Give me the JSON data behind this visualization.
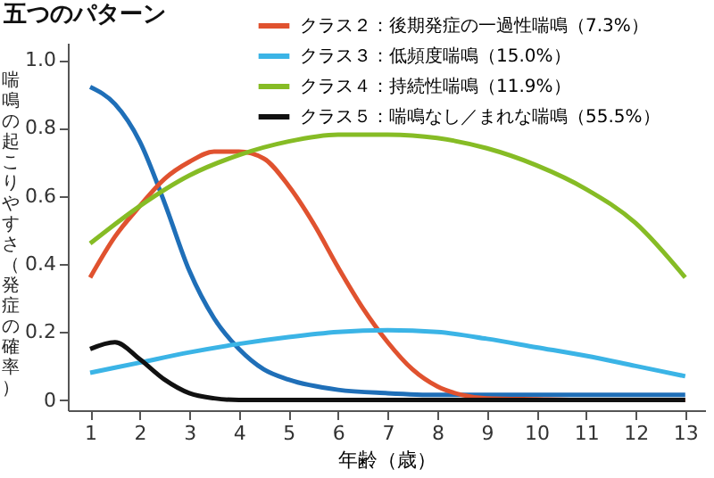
{
  "chart_data": {
    "type": "line",
    "title": "五つのパターン",
    "xlabel": "年齢（歳）",
    "ylabel": "喘鳴の起こりやすさ（発症の確率）",
    "xlim": [
      0.55,
      13.4
    ],
    "xticks": [
      1,
      2,
      3,
      4,
      5,
      6,
      7,
      8,
      9,
      10,
      11,
      12,
      13
    ],
    "ylim": [
      -0.03,
      1.05
    ],
    "yticks": [
      {
        "value": 0,
        "label": "0"
      },
      0.2,
      0.4,
      0.6,
      0.8,
      {
        "value": 1.0,
        "label": "1.0"
      }
    ],
    "grid": false,
    "legend": "top right",
    "marker": "none",
    "line_style": "solid",
    "series": [
      {
        "color": "#1f6fb8",
        "x": [
          1,
          1.5,
          2,
          2.5,
          3,
          3.5,
          4,
          4.5,
          5,
          6,
          7,
          8,
          9,
          10,
          11,
          12,
          13
        ],
        "values": [
          0.92,
          0.87,
          0.76,
          0.58,
          0.38,
          0.24,
          0.15,
          0.09,
          0.06,
          0.03,
          0.02,
          0.015,
          0.015,
          0.015,
          0.015,
          0.015,
          0.015
        ]
      },
      {
        "name": "クラス２：後期発症の一過性喘鳴（7.3%）",
        "color": "#e0522f",
        "x": [
          1,
          1.5,
          2,
          2.5,
          3,
          3.5,
          4,
          4.5,
          5,
          5.5,
          6,
          6.5,
          7,
          7.5,
          8,
          8.5,
          9,
          10,
          11,
          13
        ],
        "values": [
          0.36,
          0.48,
          0.57,
          0.65,
          0.7,
          0.73,
          0.73,
          0.71,
          0.63,
          0.52,
          0.39,
          0.27,
          0.17,
          0.09,
          0.04,
          0.015,
          0.005,
          0.002,
          0,
          0
        ]
      },
      {
        "name": "クラス３：低頻度喘鳴（15.0%）",
        "color": "#3bb4e6",
        "x": [
          1,
          2,
          3,
          4,
          5,
          6,
          7,
          8,
          9,
          10,
          11,
          12,
          13
        ],
        "values": [
          0.08,
          0.11,
          0.14,
          0.165,
          0.185,
          0.2,
          0.205,
          0.2,
          0.18,
          0.155,
          0.13,
          0.1,
          0.07
        ]
      },
      {
        "name": "クラス４：持続性喘鳴（11.9%）",
        "color": "#86bc25",
        "x": [
          1,
          2,
          3,
          4,
          5,
          6,
          7,
          8,
          9,
          10,
          11,
          12,
          13
        ],
        "values": [
          0.46,
          0.57,
          0.66,
          0.72,
          0.76,
          0.78,
          0.78,
          0.77,
          0.74,
          0.69,
          0.62,
          0.52,
          0.36
        ]
      },
      {
        "name": "クラス５：喘鳴なし／まれな喘鳴（55.5%）",
        "color": "#111111",
        "x": [
          1,
          1.5,
          2,
          2.5,
          3,
          3.5,
          4,
          13
        ],
        "values": [
          0.15,
          0.17,
          0.12,
          0.06,
          0.02,
          0.005,
          0,
          0
        ]
      }
    ]
  }
}
